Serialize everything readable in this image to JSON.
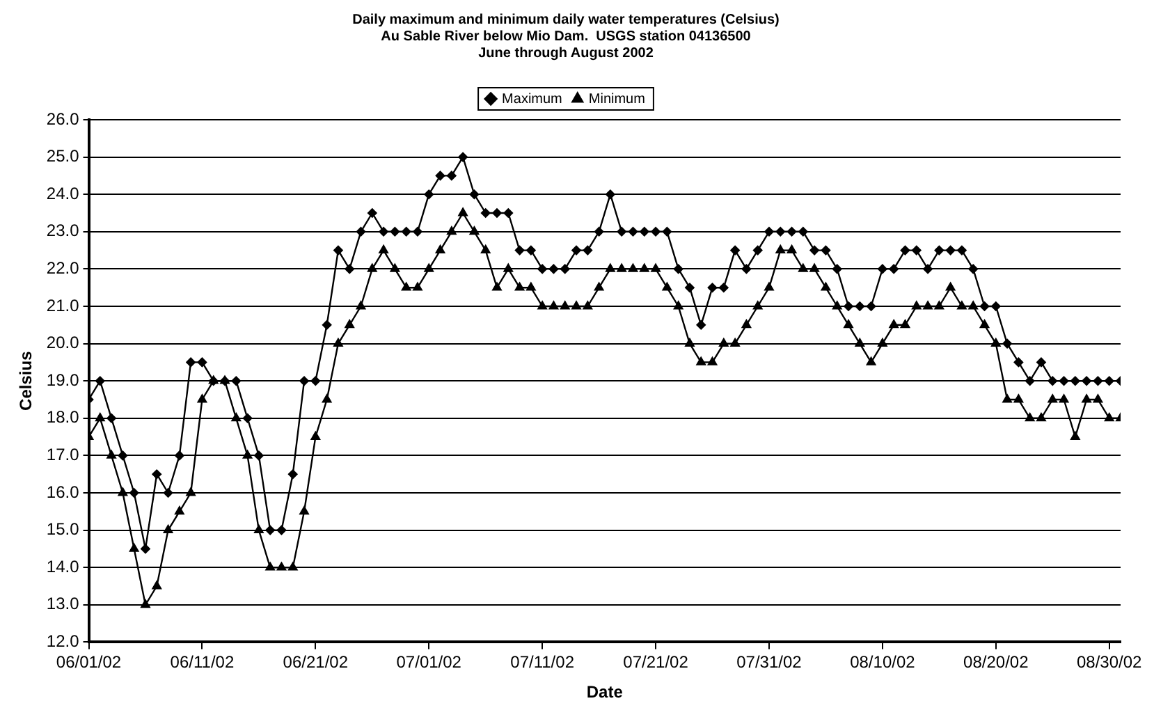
{
  "chart_data": {
    "type": "line",
    "title": "Daily maximum and minimum daily water temperatures (Celsius)\nAu Sable River below Mio Dam.  USGS station 04136500\nJune through August 2002",
    "xlabel": "Date",
    "ylabel": "Celsius",
    "x": [
      "2002-06-01",
      "2002-06-02",
      "2002-06-03",
      "2002-06-04",
      "2002-06-05",
      "2002-06-06",
      "2002-06-07",
      "2002-06-08",
      "2002-06-09",
      "2002-06-10",
      "2002-06-11",
      "2002-06-12",
      "2002-06-13",
      "2002-06-14",
      "2002-06-15",
      "2002-06-16",
      "2002-06-17",
      "2002-06-18",
      "2002-06-19",
      "2002-06-20",
      "2002-06-21",
      "2002-06-22",
      "2002-06-23",
      "2002-06-24",
      "2002-06-25",
      "2002-06-26",
      "2002-06-27",
      "2002-06-28",
      "2002-06-29",
      "2002-06-30",
      "2002-07-01",
      "2002-07-02",
      "2002-07-03",
      "2002-07-04",
      "2002-07-05",
      "2002-07-06",
      "2002-07-07",
      "2002-07-08",
      "2002-07-09",
      "2002-07-10",
      "2002-07-11",
      "2002-07-12",
      "2002-07-13",
      "2002-07-14",
      "2002-07-15",
      "2002-07-16",
      "2002-07-17",
      "2002-07-18",
      "2002-07-19",
      "2002-07-20",
      "2002-07-21",
      "2002-07-22",
      "2002-07-23",
      "2002-07-24",
      "2002-07-25",
      "2002-07-26",
      "2002-07-27",
      "2002-07-28",
      "2002-07-29",
      "2002-07-30",
      "2002-07-31",
      "2002-08-01",
      "2002-08-02",
      "2002-08-03",
      "2002-08-04",
      "2002-08-05",
      "2002-08-06",
      "2002-08-07",
      "2002-08-08",
      "2002-08-09",
      "2002-08-10",
      "2002-08-11",
      "2002-08-12",
      "2002-08-13",
      "2002-08-14",
      "2002-08-15",
      "2002-08-16",
      "2002-08-17",
      "2002-08-18",
      "2002-08-19",
      "2002-08-20",
      "2002-08-21",
      "2002-08-22",
      "2002-08-23",
      "2002-08-24",
      "2002-08-25",
      "2002-08-26",
      "2002-08-27",
      "2002-08-28",
      "2002-08-29",
      "2002-08-30",
      "2002-08-31"
    ],
    "series": [
      {
        "name": "Maximum",
        "color": "#000000",
        "marker": "diamond",
        "values": [
          18.5,
          19,
          18,
          17,
          16,
          14.5,
          16.5,
          16,
          17,
          19.5,
          19.5,
          19,
          19,
          19,
          18,
          17,
          15,
          15,
          16.5,
          19,
          19,
          20.5,
          22.5,
          22,
          23,
          23.5,
          23,
          23,
          23,
          23,
          24,
          24.5,
          24.5,
          25,
          24,
          23.5,
          23.5,
          23.5,
          22.5,
          22.5,
          22,
          22,
          22,
          22.5,
          22.5,
          23,
          24,
          23,
          23,
          23,
          23,
          23,
          22,
          21.5,
          20.5,
          21.5,
          21.5,
          22.5,
          22,
          22.5,
          23,
          23,
          23,
          23,
          22.5,
          22.5,
          22,
          21,
          21,
          21,
          22,
          22,
          22.5,
          22.5,
          22,
          22.5,
          22.5,
          22.5,
          22,
          21,
          21,
          20,
          19.5,
          19,
          19.5,
          19,
          19,
          19,
          19,
          19,
          19,
          19
        ]
      },
      {
        "name": "Minimum",
        "color": "#000000",
        "marker": "triangle",
        "values": [
          17.5,
          18,
          17,
          16,
          14.5,
          13,
          13.5,
          15,
          15.5,
          16,
          18.5,
          19,
          19,
          18,
          17,
          15,
          14,
          14,
          14,
          15.5,
          17.5,
          18.5,
          20,
          20.5,
          21,
          22,
          22.5,
          22,
          21.5,
          21.5,
          22,
          22.5,
          23,
          23.5,
          23,
          22.5,
          21.5,
          22,
          21.5,
          21.5,
          21,
          21,
          21,
          21,
          21,
          21.5,
          22,
          22,
          22,
          22,
          22,
          21.5,
          21,
          20,
          19.5,
          19.5,
          20,
          20,
          20.5,
          21,
          21.5,
          22.5,
          22.5,
          22,
          22,
          21.5,
          21,
          20.5,
          20,
          19.5,
          20,
          20.5,
          20.5,
          21,
          21,
          21,
          21.5,
          21,
          21,
          20.5,
          20,
          18.5,
          18.5,
          18,
          18,
          18.5,
          18.5,
          17.5,
          18.5,
          18.5,
          18,
          18
        ]
      }
    ],
    "xlim": [
      "2002-06-01",
      "2002-08-31"
    ],
    "xticks": [
      {
        "value": "2002-06-01",
        "label": "06/01/02"
      },
      {
        "value": "2002-06-11",
        "label": "06/11/02"
      },
      {
        "value": "2002-06-21",
        "label": "06/21/02"
      },
      {
        "value": "2002-07-01",
        "label": "07/01/02"
      },
      {
        "value": "2002-07-11",
        "label": "07/11/02"
      },
      {
        "value": "2002-07-21",
        "label": "07/21/02"
      },
      {
        "value": "2002-07-31",
        "label": "07/31/02"
      },
      {
        "value": "2002-08-10",
        "label": "08/10/02"
      },
      {
        "value": "2002-08-20",
        "label": "08/20/02"
      },
      {
        "value": "2002-08-30",
        "label": "08/30/02"
      }
    ],
    "ylim": [
      12,
      26
    ],
    "yticks": [
      {
        "value": 12,
        "label": "12.0"
      },
      {
        "value": 13,
        "label": "13.0"
      },
      {
        "value": 14,
        "label": "14.0"
      },
      {
        "value": 15,
        "label": "15.0"
      },
      {
        "value": 16,
        "label": "16.0"
      },
      {
        "value": 17,
        "label": "17.0"
      },
      {
        "value": 18,
        "label": "18.0"
      },
      {
        "value": 19,
        "label": "19.0"
      },
      {
        "value": 20,
        "label": "20.0"
      },
      {
        "value": 21,
        "label": "21.0"
      },
      {
        "value": 22,
        "label": "22.0"
      },
      {
        "value": 23,
        "label": "23.0"
      },
      {
        "value": 24,
        "label": "24.0"
      },
      {
        "value": 25,
        "label": "25.0"
      },
      {
        "value": 26,
        "label": "26.0"
      }
    ],
    "grid": "y",
    "legend": "top",
    "line_style": "solid"
  }
}
